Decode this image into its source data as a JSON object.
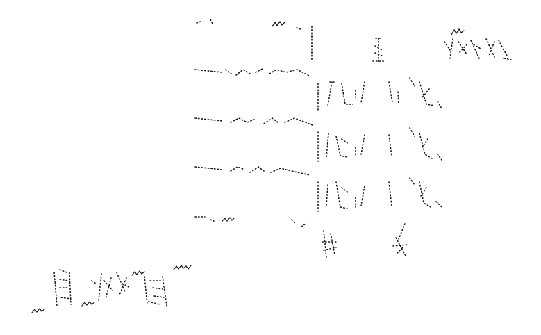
{
  "scene": {
    "description_visible_text": [],
    "ink_color": "#1a1a1a",
    "background_color": "#ffffff"
  }
}
